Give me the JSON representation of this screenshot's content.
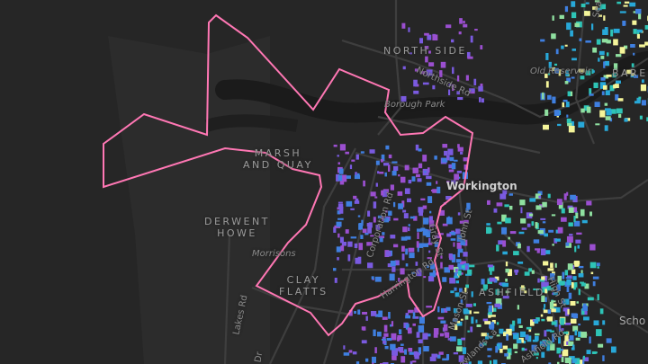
{
  "map": {
    "colors": {
      "background": "#262626",
      "land_west": "#2e2e2e",
      "river": "#1b1b1b",
      "road": "#3c3c3c",
      "boundary": "#ff77b4",
      "building_ramp": [
        "#9b4fd0",
        "#7a5ae0",
        "#3f7fe0",
        "#28a8d8",
        "#2ec4b6",
        "#8fe0a0",
        "#f5f59a"
      ]
    },
    "labels": {
      "areas": {
        "north_side": "NORTH SIDE",
        "marsh_and_quay": "MARSH\nAND QUAY",
        "derwent_howe": "DERWENT\nHOWE",
        "clay_flatts": "CLAY\nFLATTS",
        "ashfield": "ASHFIELD",
        "barepot": "BAREP"
      },
      "town": "Workington",
      "pois": {
        "borough_park": "Borough Park",
        "old_reservoir": "Old Reservoir",
        "morrisons": "Morrisons",
        "school": "Scho"
      },
      "roads": {
        "northside_rd": "Northside Rd",
        "corporation_rd": "Corporation Rd",
        "gray_st": "Gray St",
        "john_st": "John St",
        "harrington_rd": "Harrington Rd",
        "mason_st": "Mason St",
        "newlands_la": "Newlands La",
        "ashfield_rd": "Ashfield Rd",
        "high_st": "High St",
        "lakes_rd": "Lakes Rd",
        "sea": "Sea",
        "dr": "Dr"
      }
    }
  }
}
